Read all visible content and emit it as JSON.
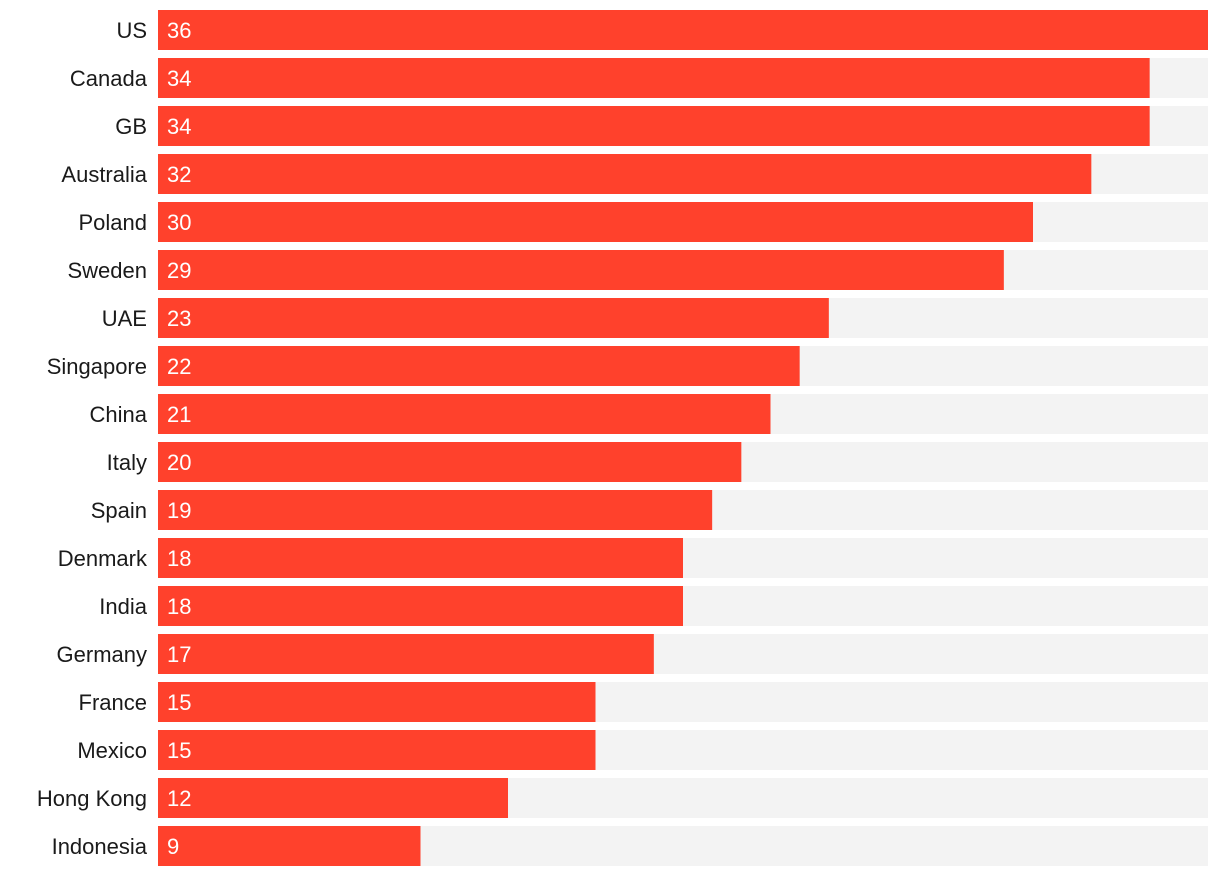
{
  "chart_data": {
    "type": "bar",
    "orientation": "horizontal",
    "title": "",
    "xlabel": "",
    "ylabel": "",
    "xlim": [
      0,
      36
    ],
    "grid": false,
    "legend": "none",
    "colors": {
      "bar": "#ff412c",
      "track": "#f3f3f3",
      "label": "#1a1a1a",
      "value_label": "#ffffff"
    },
    "categories": [
      "US",
      "Canada",
      "GB",
      "Australia",
      "Poland",
      "Sweden",
      "UAE",
      "Singapore",
      "China",
      "Italy",
      "Spain",
      "Denmark",
      "India",
      "Germany",
      "France",
      "Mexico",
      "Hong Kong",
      "Indonesia"
    ],
    "values": [
      36,
      34,
      34,
      32,
      30,
      29,
      23,
      22,
      21,
      20,
      19,
      18,
      18,
      17,
      15,
      15,
      12,
      9
    ],
    "data_labels": [
      "36",
      "34",
      "34",
      "32",
      "30",
      "29",
      "23",
      "22",
      "21",
      "20",
      "19",
      "18",
      "18",
      "17",
      "15",
      "15",
      "12",
      "9"
    ]
  }
}
